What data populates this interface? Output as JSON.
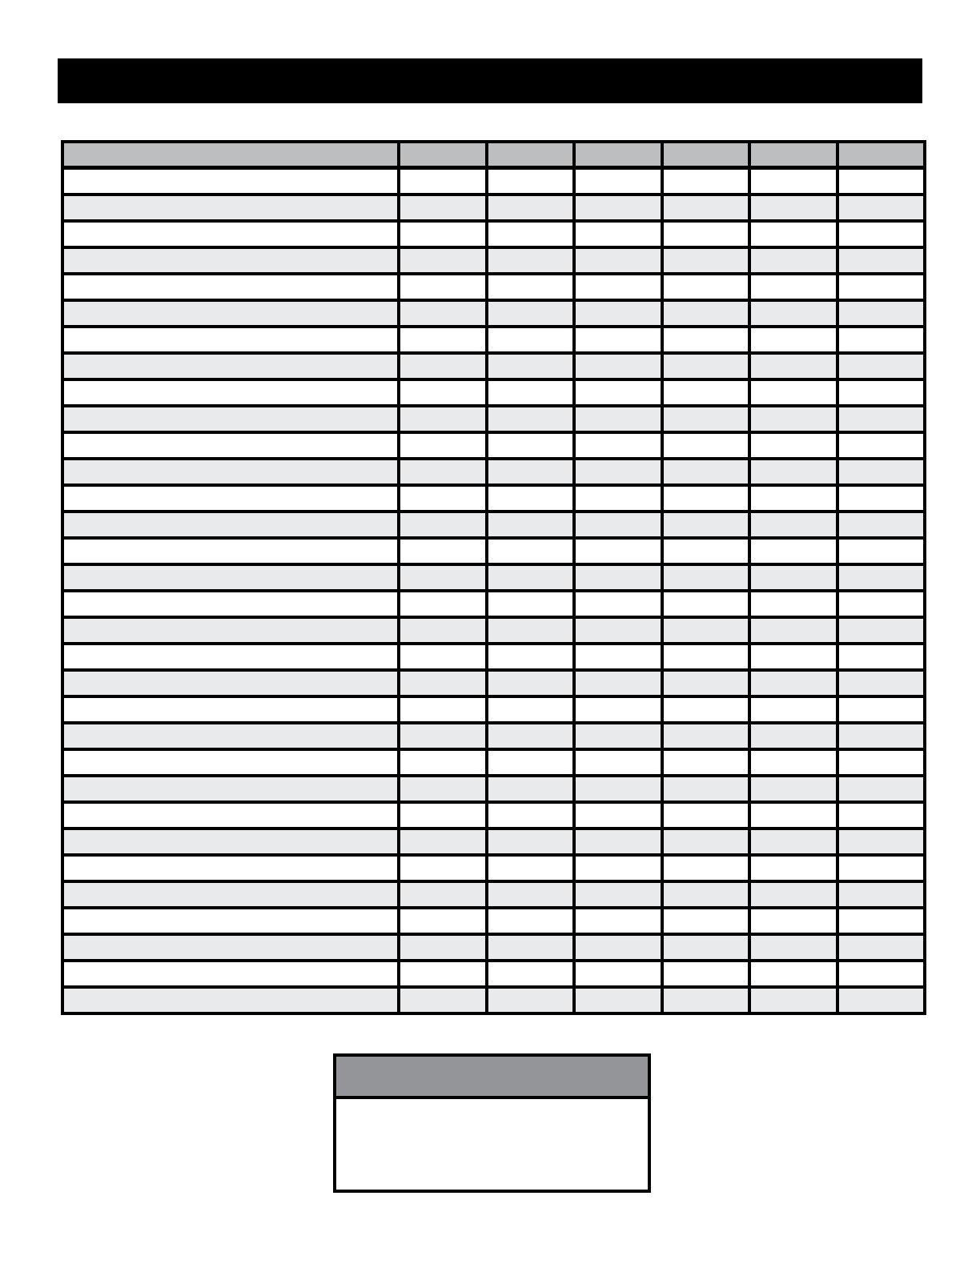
{
  "page": {
    "background": "#ffffff"
  },
  "banner": {
    "title": "",
    "bg_color": "#000000"
  },
  "table": {
    "column_count": 7,
    "header_labels": [
      "",
      "",
      "",
      "",
      "",
      "",
      ""
    ],
    "data_row_count": 32,
    "cell_text": "",
    "colors": {
      "header_bg": "#bcbec0",
      "row_bg": "#ffffff",
      "stripe_bg": "#e9eaeb",
      "border": "#000000"
    }
  },
  "note_box": {
    "header_text": "",
    "body_text": "",
    "colors": {
      "header_bg": "#939598",
      "border": "#000000"
    }
  }
}
